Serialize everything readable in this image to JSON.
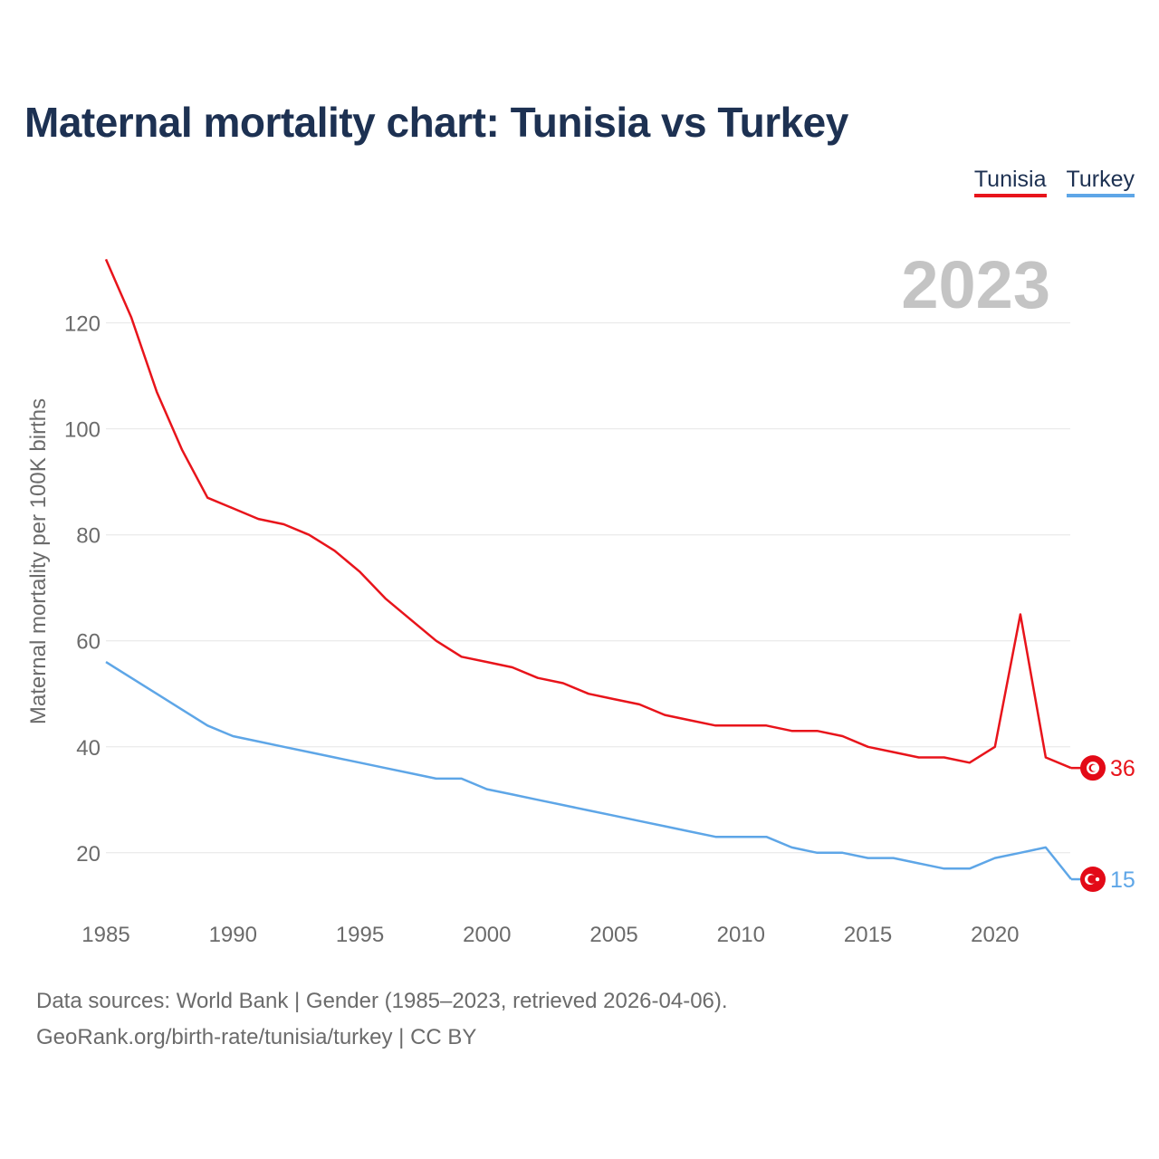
{
  "title": "Maternal mortality chart: Tunisia vs Turkey",
  "legend": {
    "tunisia": "Tunisia",
    "turkey": "Turkey"
  },
  "year_label": "2023",
  "colors": {
    "tunisia": "#e8141b",
    "turkey": "#5ea6e7",
    "title": "#1d3152",
    "grid": "#e6e6e6",
    "tick": "#6b6b6b",
    "year": "#c4c4c4"
  },
  "source": {
    "line1": "Data sources: World Bank | Gender (1985–2023, retrieved 2026-04-06).",
    "line2": "GeoRank.org/birth-rate/tunisia/turkey | CC BY"
  },
  "chart_data": {
    "type": "line",
    "title": "Maternal mortality chart: Tunisia vs Turkey",
    "xlabel": "",
    "ylabel": "Maternal mortality per 100K births",
    "xlim": [
      1985,
      2023
    ],
    "ylim": [
      8,
      136
    ],
    "yticks": [
      20,
      40,
      60,
      80,
      100,
      120
    ],
    "xticks": [
      1985,
      1990,
      1995,
      2000,
      2005,
      2010,
      2015,
      2020
    ],
    "x": [
      1985,
      1986,
      1987,
      1988,
      1989,
      1990,
      1991,
      1992,
      1993,
      1994,
      1995,
      1996,
      1997,
      1998,
      1999,
      2000,
      2001,
      2002,
      2003,
      2004,
      2005,
      2006,
      2007,
      2008,
      2009,
      2010,
      2011,
      2012,
      2013,
      2014,
      2015,
      2016,
      2017,
      2018,
      2019,
      2020,
      2021,
      2022,
      2023
    ],
    "series": [
      {
        "name": "Tunisia",
        "end_label": "36",
        "values": [
          132,
          121,
          107,
          96,
          87,
          85,
          83,
          82,
          80,
          77,
          73,
          68,
          64,
          60,
          57,
          56,
          55,
          53,
          52,
          50,
          49,
          48,
          46,
          45,
          44,
          44,
          44,
          43,
          43,
          42,
          40,
          39,
          38,
          38,
          37,
          40,
          65,
          38,
          36
        ]
      },
      {
        "name": "Turkey",
        "end_label": "15",
        "values": [
          56,
          53,
          50,
          47,
          44,
          42,
          41,
          40,
          39,
          38,
          37,
          36,
          35,
          34,
          34,
          32,
          31,
          30,
          29,
          28,
          27,
          26,
          25,
          24,
          23,
          23,
          23,
          21,
          20,
          20,
          19,
          19,
          18,
          17,
          17,
          19,
          20,
          21,
          15
        ]
      }
    ]
  }
}
